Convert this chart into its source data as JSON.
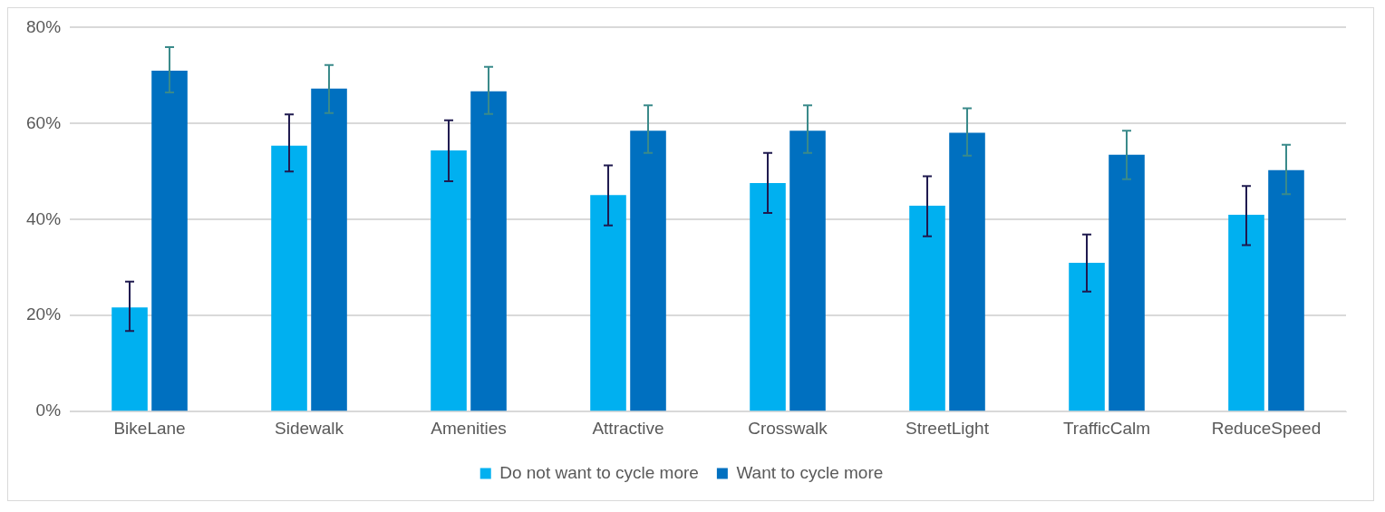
{
  "chart_data": {
    "type": "bar",
    "categories": [
      "BikeLane",
      "Sidewalk",
      "Amenities",
      "Attractive",
      "Crosswalk",
      "StreetLight",
      "TrafficCalm",
      "ReduceSpeed"
    ],
    "series": [
      {
        "name": "Do not want to cycle more",
        "color": "#00b0f0",
        "values": [
          21.7,
          55.4,
          54.4,
          45.1,
          47.6,
          42.9,
          31.0,
          41.0
        ],
        "errors": [
          [
            16.8,
            27.1
          ],
          [
            50.0,
            61.9
          ],
          [
            48.0,
            60.7
          ],
          [
            38.8,
            51.3
          ],
          [
            41.4,
            53.9
          ],
          [
            36.5,
            49.0
          ],
          [
            25.0,
            36.9
          ],
          [
            34.7,
            47.0
          ]
        ]
      },
      {
        "name": "Want to cycle more",
        "color": "#0070c0",
        "values": [
          71.0,
          67.3,
          66.7,
          58.5,
          58.5,
          58.1,
          53.5,
          50.3
        ],
        "errors": [
          [
            66.5,
            75.9
          ],
          [
            62.2,
            72.2
          ],
          [
            62.0,
            71.8
          ],
          [
            53.9,
            63.8
          ],
          [
            53.9,
            63.8
          ],
          [
            53.3,
            63.2
          ],
          [
            48.4,
            58.5
          ],
          [
            45.3,
            55.6
          ]
        ]
      }
    ],
    "ylim": [
      0,
      80
    ],
    "yticks": [
      {
        "value": 0,
        "label": "0%"
      },
      {
        "value": 20,
        "label": "20%"
      },
      {
        "value": 40,
        "label": "40%"
      },
      {
        "value": 60,
        "label": "60%"
      },
      {
        "value": 80,
        "label": "80%"
      }
    ],
    "grid": "y",
    "legend": "bottom"
  }
}
